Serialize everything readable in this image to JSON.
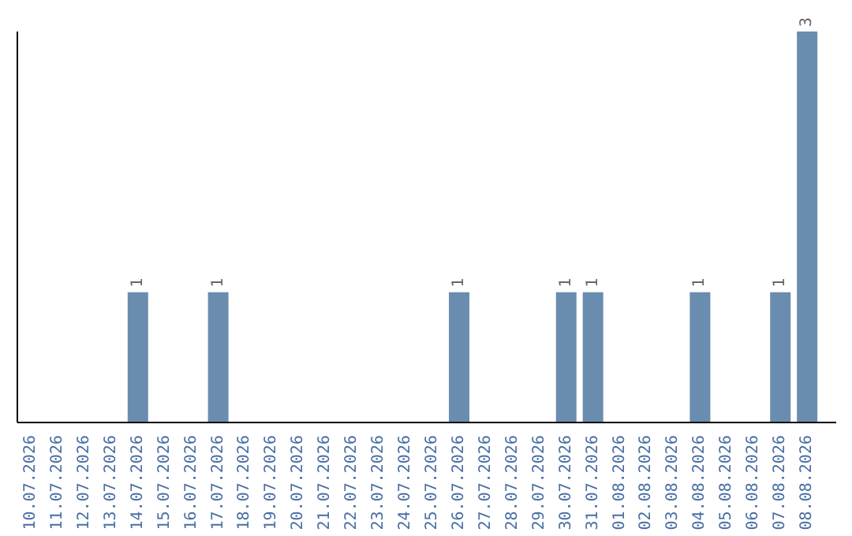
{
  "chart_data": {
    "type": "bar",
    "categories": [
      "10.07.2026",
      "11.07.2026",
      "12.07.2026",
      "13.07.2026",
      "14.07.2026",
      "15.07.2026",
      "16.07.2026",
      "17.07.2026",
      "18.07.2026",
      "19.07.2026",
      "20.07.2026",
      "21.07.2026",
      "22.07.2026",
      "23.07.2026",
      "24.07.2026",
      "25.07.2026",
      "26.07.2026",
      "27.07.2026",
      "28.07.2026",
      "29.07.2026",
      "30.07.2026",
      "31.07.2026",
      "01.08.2026",
      "02.08.2026",
      "03.08.2026",
      "04.08.2026",
      "05.08.2026",
      "06.08.2026",
      "07.08.2026",
      "08.08.2026"
    ],
    "values": [
      0,
      0,
      0,
      0,
      1,
      0,
      0,
      1,
      0,
      0,
      0,
      0,
      0,
      0,
      0,
      0,
      1,
      0,
      0,
      0,
      1,
      1,
      0,
      0,
      0,
      1,
      0,
      0,
      1,
      3
    ],
    "value_labels": [
      null,
      null,
      null,
      null,
      "1",
      null,
      null,
      "1",
      null,
      null,
      null,
      null,
      null,
      null,
      null,
      null,
      "1",
      null,
      null,
      null,
      "1",
      "1",
      null,
      null,
      null,
      "1",
      null,
      null,
      "1",
      "3"
    ],
    "color": "#6a8caf",
    "grid": false,
    "legend": false
  }
}
